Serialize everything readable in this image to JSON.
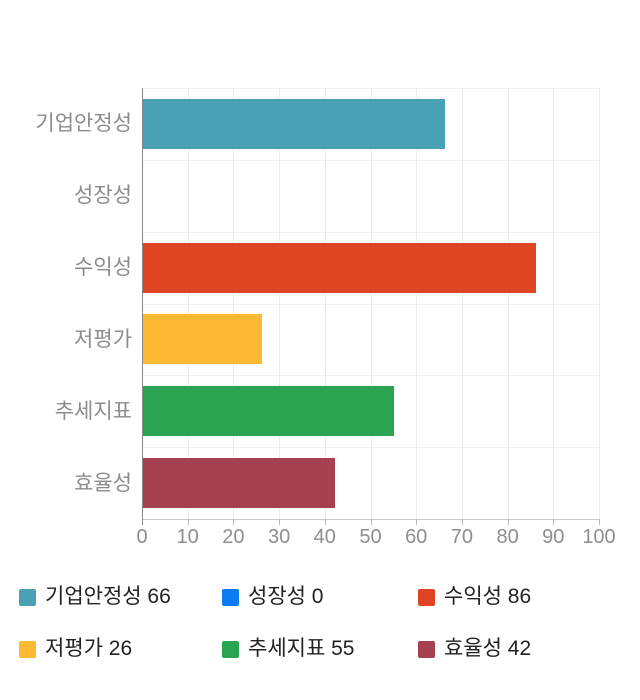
{
  "chart_data": {
    "type": "bar",
    "orientation": "horizontal",
    "title": "",
    "xlabel": "",
    "ylabel": "",
    "categories": [
      "기업안정성",
      "성장성",
      "수익성",
      "저평가",
      "추세지표",
      "효율성"
    ],
    "values": [
      66,
      0,
      86,
      26,
      55,
      42
    ],
    "colors": [
      "#4AA0B5",
      "#0C7BF2",
      "#DF4425",
      "#FDB933",
      "#2AA451",
      "#A64250"
    ],
    "xlim": [
      0,
      100
    ],
    "x_ticks": [
      0,
      10,
      20,
      30,
      40,
      50,
      60,
      70,
      80,
      90,
      100
    ],
    "grid": true,
    "legend_position": "bottom",
    "legend_items": [
      {
        "label": "기업안정성 66",
        "color": "#4AA0B5"
      },
      {
        "label": "성장성 0",
        "color": "#0C7BF2"
      },
      {
        "label": "수익성 86",
        "color": "#DF4425"
      },
      {
        "label": "저평가 26",
        "color": "#FDB933"
      },
      {
        "label": "추세지표 55",
        "color": "#2AA451"
      },
      {
        "label": "효율성 42",
        "color": "#A64250"
      }
    ]
  }
}
